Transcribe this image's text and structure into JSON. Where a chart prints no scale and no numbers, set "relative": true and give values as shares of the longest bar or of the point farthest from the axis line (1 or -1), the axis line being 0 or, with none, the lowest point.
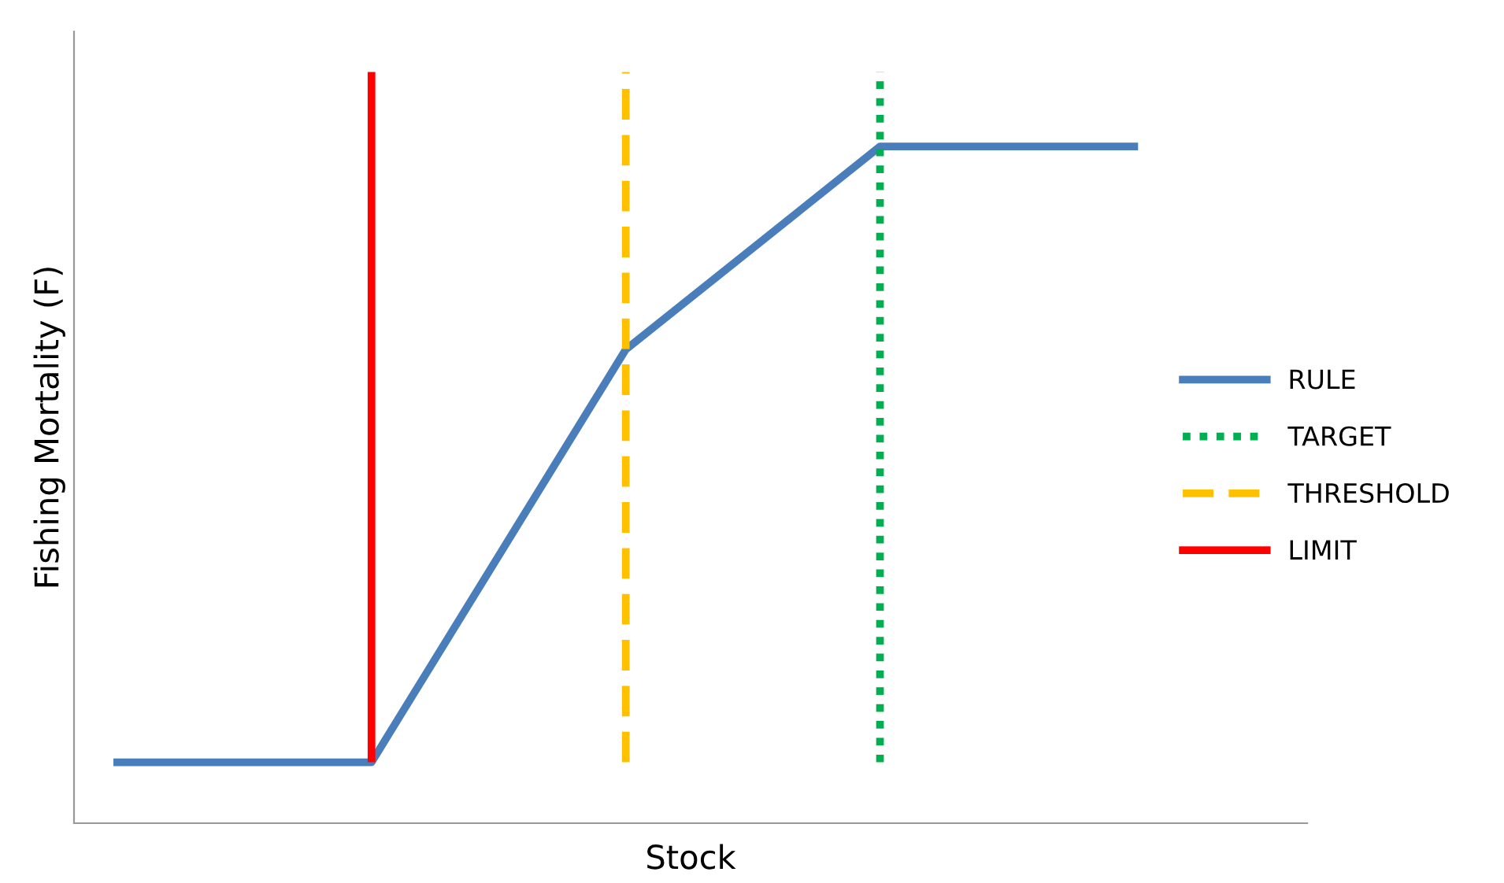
{
  "chart_data": {
    "type": "line",
    "relative": true,
    "xlabel": "Stock",
    "ylabel": "Fishing Mortality (F)",
    "categories": [
      null,
      null,
      null,
      null,
      null
    ],
    "series": [
      {
        "name": "RULE",
        "color": "#4a7ebb",
        "values": [
          0.09,
          0.09,
          0.7,
          1,
          1
        ]
      }
    ],
    "ref_lines": [
      {
        "axis": "x",
        "label": "TARGET",
        "color": "#00b050",
        "line_style": "dotted"
      },
      {
        "axis": "x",
        "label": "THRESHOLD",
        "color": "#ffc000",
        "line_style": "dashed"
      },
      {
        "axis": "x",
        "label": "LIMIT",
        "color": "#ff0000",
        "line_style": "solid"
      }
    ],
    "legend": "right",
    "marker": "none"
  }
}
